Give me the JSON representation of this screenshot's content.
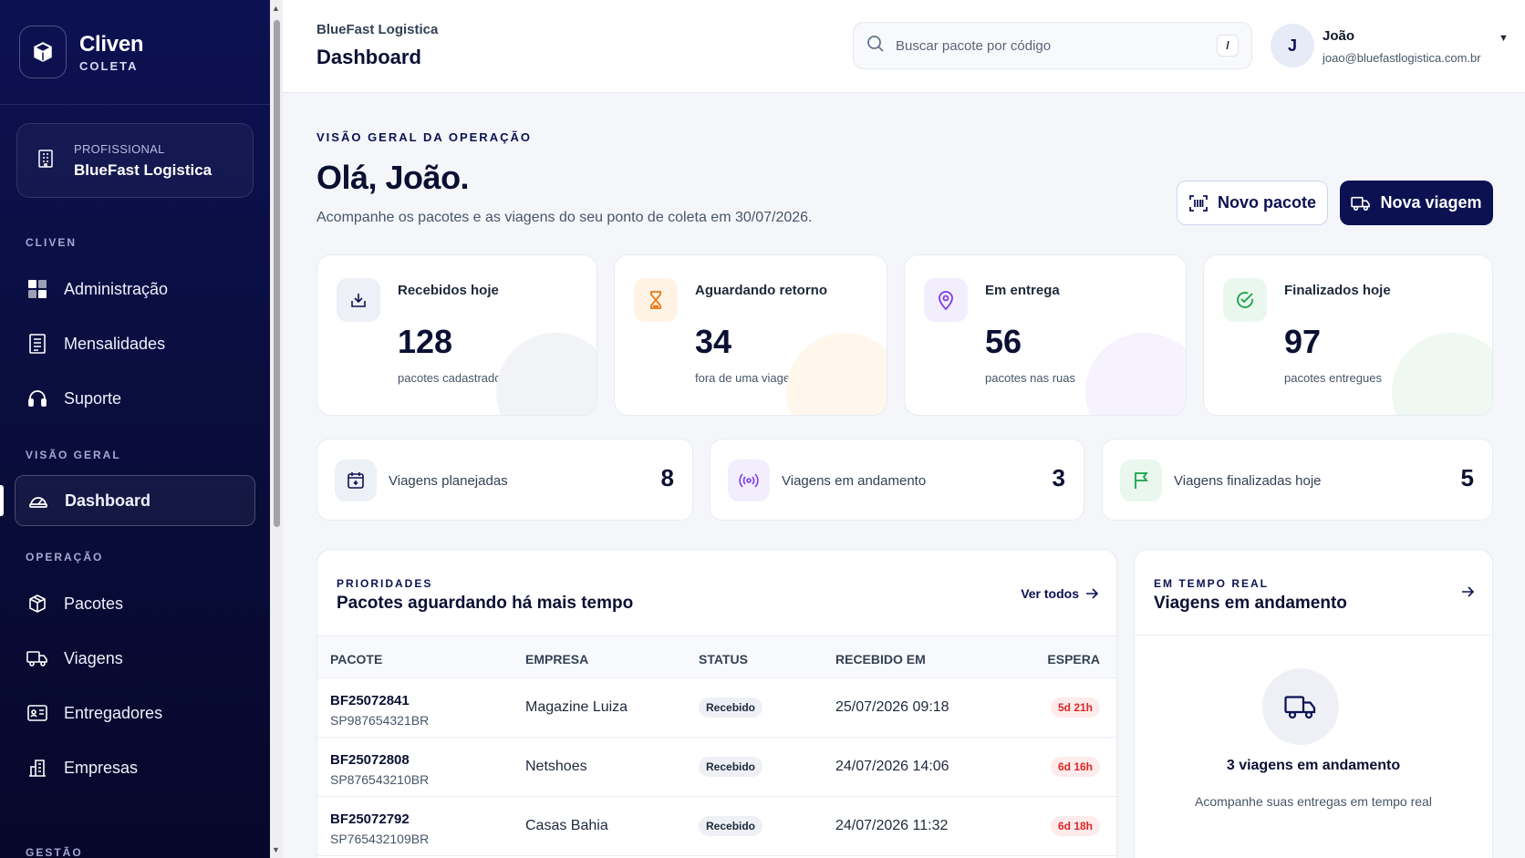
{
  "brand": {
    "name": "Cliven",
    "sub": "COLETA"
  },
  "org": {
    "plan": "PROFISSIONAL",
    "name": "BlueFast Logistica"
  },
  "sidebar": {
    "sections": {
      "cliven": "CLIVEN",
      "overview": "VISÃO GERAL",
      "operation": "OPERAÇÃO",
      "management": "GESTÃO"
    },
    "items": [
      {
        "label": "Administração",
        "icon": "layout-icon"
      },
      {
        "label": "Mensalidades",
        "icon": "receipt-icon"
      },
      {
        "label": "Suporte",
        "icon": "headset-icon"
      },
      {
        "label": "Dashboard",
        "icon": "gauge-icon",
        "active": true
      },
      {
        "label": "Pacotes",
        "icon": "package-icon"
      },
      {
        "label": "Viagens",
        "icon": "truck-icon"
      },
      {
        "label": "Entregadores",
        "icon": "id-card-icon"
      },
      {
        "label": "Empresas",
        "icon": "building-icon"
      }
    ]
  },
  "topbar": {
    "org": "BlueFast Logistica",
    "title": "Dashboard",
    "search_placeholder": "Buscar pacote por código",
    "search_shortcut": "/",
    "user": {
      "initial": "J",
      "name": "João",
      "email": "joao@bluefastlogistica.com.br"
    }
  },
  "main": {
    "eyebrow": "VISÃO GERAL DA OPERAÇÃO",
    "greeting": "Olá, João.",
    "subtitle": "Acompanhe os pacotes e as viagens do seu ponto de coleta em 30/07/2026.",
    "new_package": "Novo pacote",
    "new_trip": "Nova viagem"
  },
  "stats": [
    {
      "label": "Recebidos hoje",
      "value": "128",
      "sub": "pacotes cadastrados",
      "color": "#0c1152"
    },
    {
      "label": "Aguardando retorno",
      "value": "34",
      "sub": "fora de uma viagem",
      "color": "#ea7a16"
    },
    {
      "label": "Em entrega",
      "value": "56",
      "sub": "pacotes nas ruas",
      "color": "#7c3aed"
    },
    {
      "label": "Finalizados hoje",
      "value": "97",
      "sub": "pacotes entregues",
      "color": "#16a34a"
    }
  ],
  "trips": [
    {
      "label": "Viagens planejadas",
      "value": "8"
    },
    {
      "label": "Viagens em andamento",
      "value": "3"
    },
    {
      "label": "Viagens finalizadas hoje",
      "value": "5"
    }
  ],
  "priorities": {
    "eyebrow": "PRIORIDADES",
    "title": "Pacotes aguardando há mais tempo",
    "link": "Ver todos",
    "columns": [
      "PACOTE",
      "EMPRESA",
      "STATUS",
      "RECEBIDO EM",
      "ESPERA"
    ],
    "rows": [
      {
        "code": "BF25072841",
        "tracking": "SP987654321BR",
        "company": "Magazine Luiza",
        "status": "Recebido",
        "received": "25/07/2026 09:18",
        "wait": "5d 21h"
      },
      {
        "code": "BF25072808",
        "tracking": "SP876543210BR",
        "company": "Netshoes",
        "status": "Recebido",
        "received": "24/07/2026 14:06",
        "wait": "6d 16h"
      },
      {
        "code": "BF25072792",
        "tracking": "SP765432109BR",
        "company": "Casas Bahia",
        "status": "Recebido",
        "received": "24/07/2026 11:32",
        "wait": "6d 18h"
      }
    ]
  },
  "realtime": {
    "eyebrow": "EM TEMPO REAL",
    "title": "Viagens em andamento",
    "count_text": "3 viagens em andamento",
    "description": "Acompanhe suas entregas em tempo real"
  }
}
